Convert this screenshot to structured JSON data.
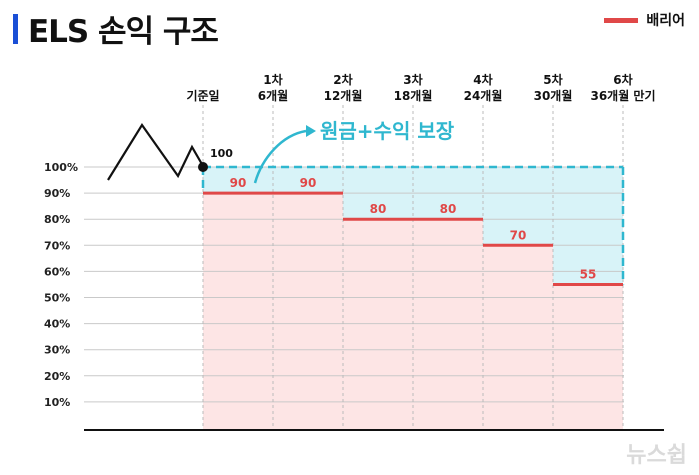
{
  "title": "ELS 손익 구조",
  "legend": {
    "label": "배리어",
    "color": "#e04848"
  },
  "watermark": "뉴스쉽",
  "chart_data": {
    "type": "line",
    "title": "ELS 손익 구조",
    "ylim": [
      0,
      100
    ],
    "y_ticks": [
      "10%",
      "20%",
      "30%",
      "40%",
      "50%",
      "60%",
      "70%",
      "80%",
      "90%",
      "100%"
    ],
    "y_tick_values": [
      10,
      20,
      30,
      40,
      50,
      60,
      70,
      80,
      90,
      100
    ],
    "grid": true,
    "legend_position": "top-right",
    "periods": [
      {
        "line1": "기준일",
        "line2": ""
      },
      {
        "line1": "1차",
        "line2": "6개월"
      },
      {
        "line1": "2차",
        "line2": "12개월"
      },
      {
        "line1": "3차",
        "line2": "18개월"
      },
      {
        "line1": "4차",
        "line2": "24개월"
      },
      {
        "line1": "5차",
        "line2": "30개월"
      },
      {
        "line1": "6차",
        "line2": "36개월 만기"
      }
    ],
    "series": [
      {
        "name": "배리어",
        "values": [
          90,
          90,
          80,
          80,
          70,
          55
        ],
        "labels": [
          "90",
          "90",
          "80",
          "80",
          "70",
          "55"
        ]
      }
    ],
    "base_value": 100,
    "base_label": "100",
    "annotation": "원금+수익 보장",
    "colors": {
      "barrier": "#e04848",
      "protected": "#2fb7cf",
      "loss_area": "#fde5e5",
      "gain_area": "#d8f3f8"
    }
  }
}
